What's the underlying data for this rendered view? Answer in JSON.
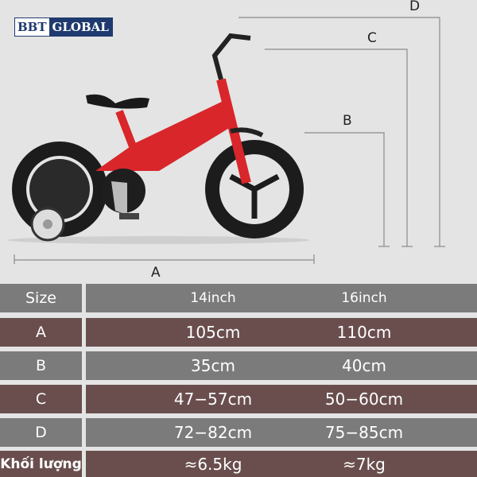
{
  "brand": {
    "logo_left": "BBT",
    "logo_right": "GLOBAL"
  },
  "colors": {
    "frame": "#d8262a",
    "tire": "#1a1a1a",
    "row_gray": "#7b7b7b",
    "row_brown": "#6a4e4e",
    "logo_blue": "#1f3a6e"
  },
  "dimensions": {
    "a": "A",
    "b": "B",
    "c": "C",
    "d": "D"
  },
  "table": {
    "header": {
      "label": "Size",
      "col1": "14inch",
      "col2": "16inch"
    },
    "rows": [
      {
        "label": "A",
        "col1": "105cm",
        "col2": "110cm"
      },
      {
        "label": "B",
        "col1": "35cm",
        "col2": "40cm"
      },
      {
        "label": "C",
        "col1": "47−57cm",
        "col2": "50−60cm"
      },
      {
        "label": "D",
        "col1": "72−82cm",
        "col2": "75−85cm"
      },
      {
        "label": "Khối lượng",
        "col1": "≈6.5kg",
        "col2": "≈7kg"
      }
    ]
  }
}
